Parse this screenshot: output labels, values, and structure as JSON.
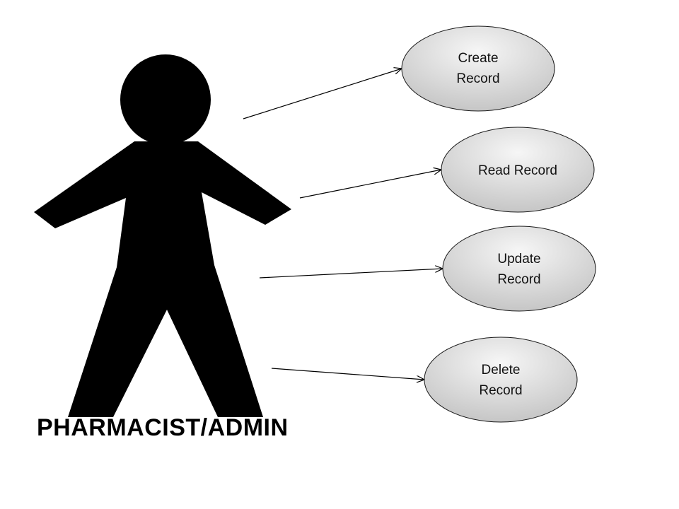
{
  "actor": {
    "label": "PHARMACIST/ADMIN"
  },
  "use_cases": [
    {
      "line1": "Create",
      "line2": "Record"
    },
    {
      "line1": "Read Record",
      "line2": ""
    },
    {
      "line1": "Update",
      "line2": "Record"
    },
    {
      "line1": "Delete",
      "line2": "Record"
    }
  ],
  "colors": {
    "actor_fill": "#000000",
    "ellipse_fill_light": "#f4f4f4",
    "ellipse_fill_dark": "#c8c8c8",
    "ellipse_stroke": "#1a1a1a",
    "connector": "#000000"
  }
}
